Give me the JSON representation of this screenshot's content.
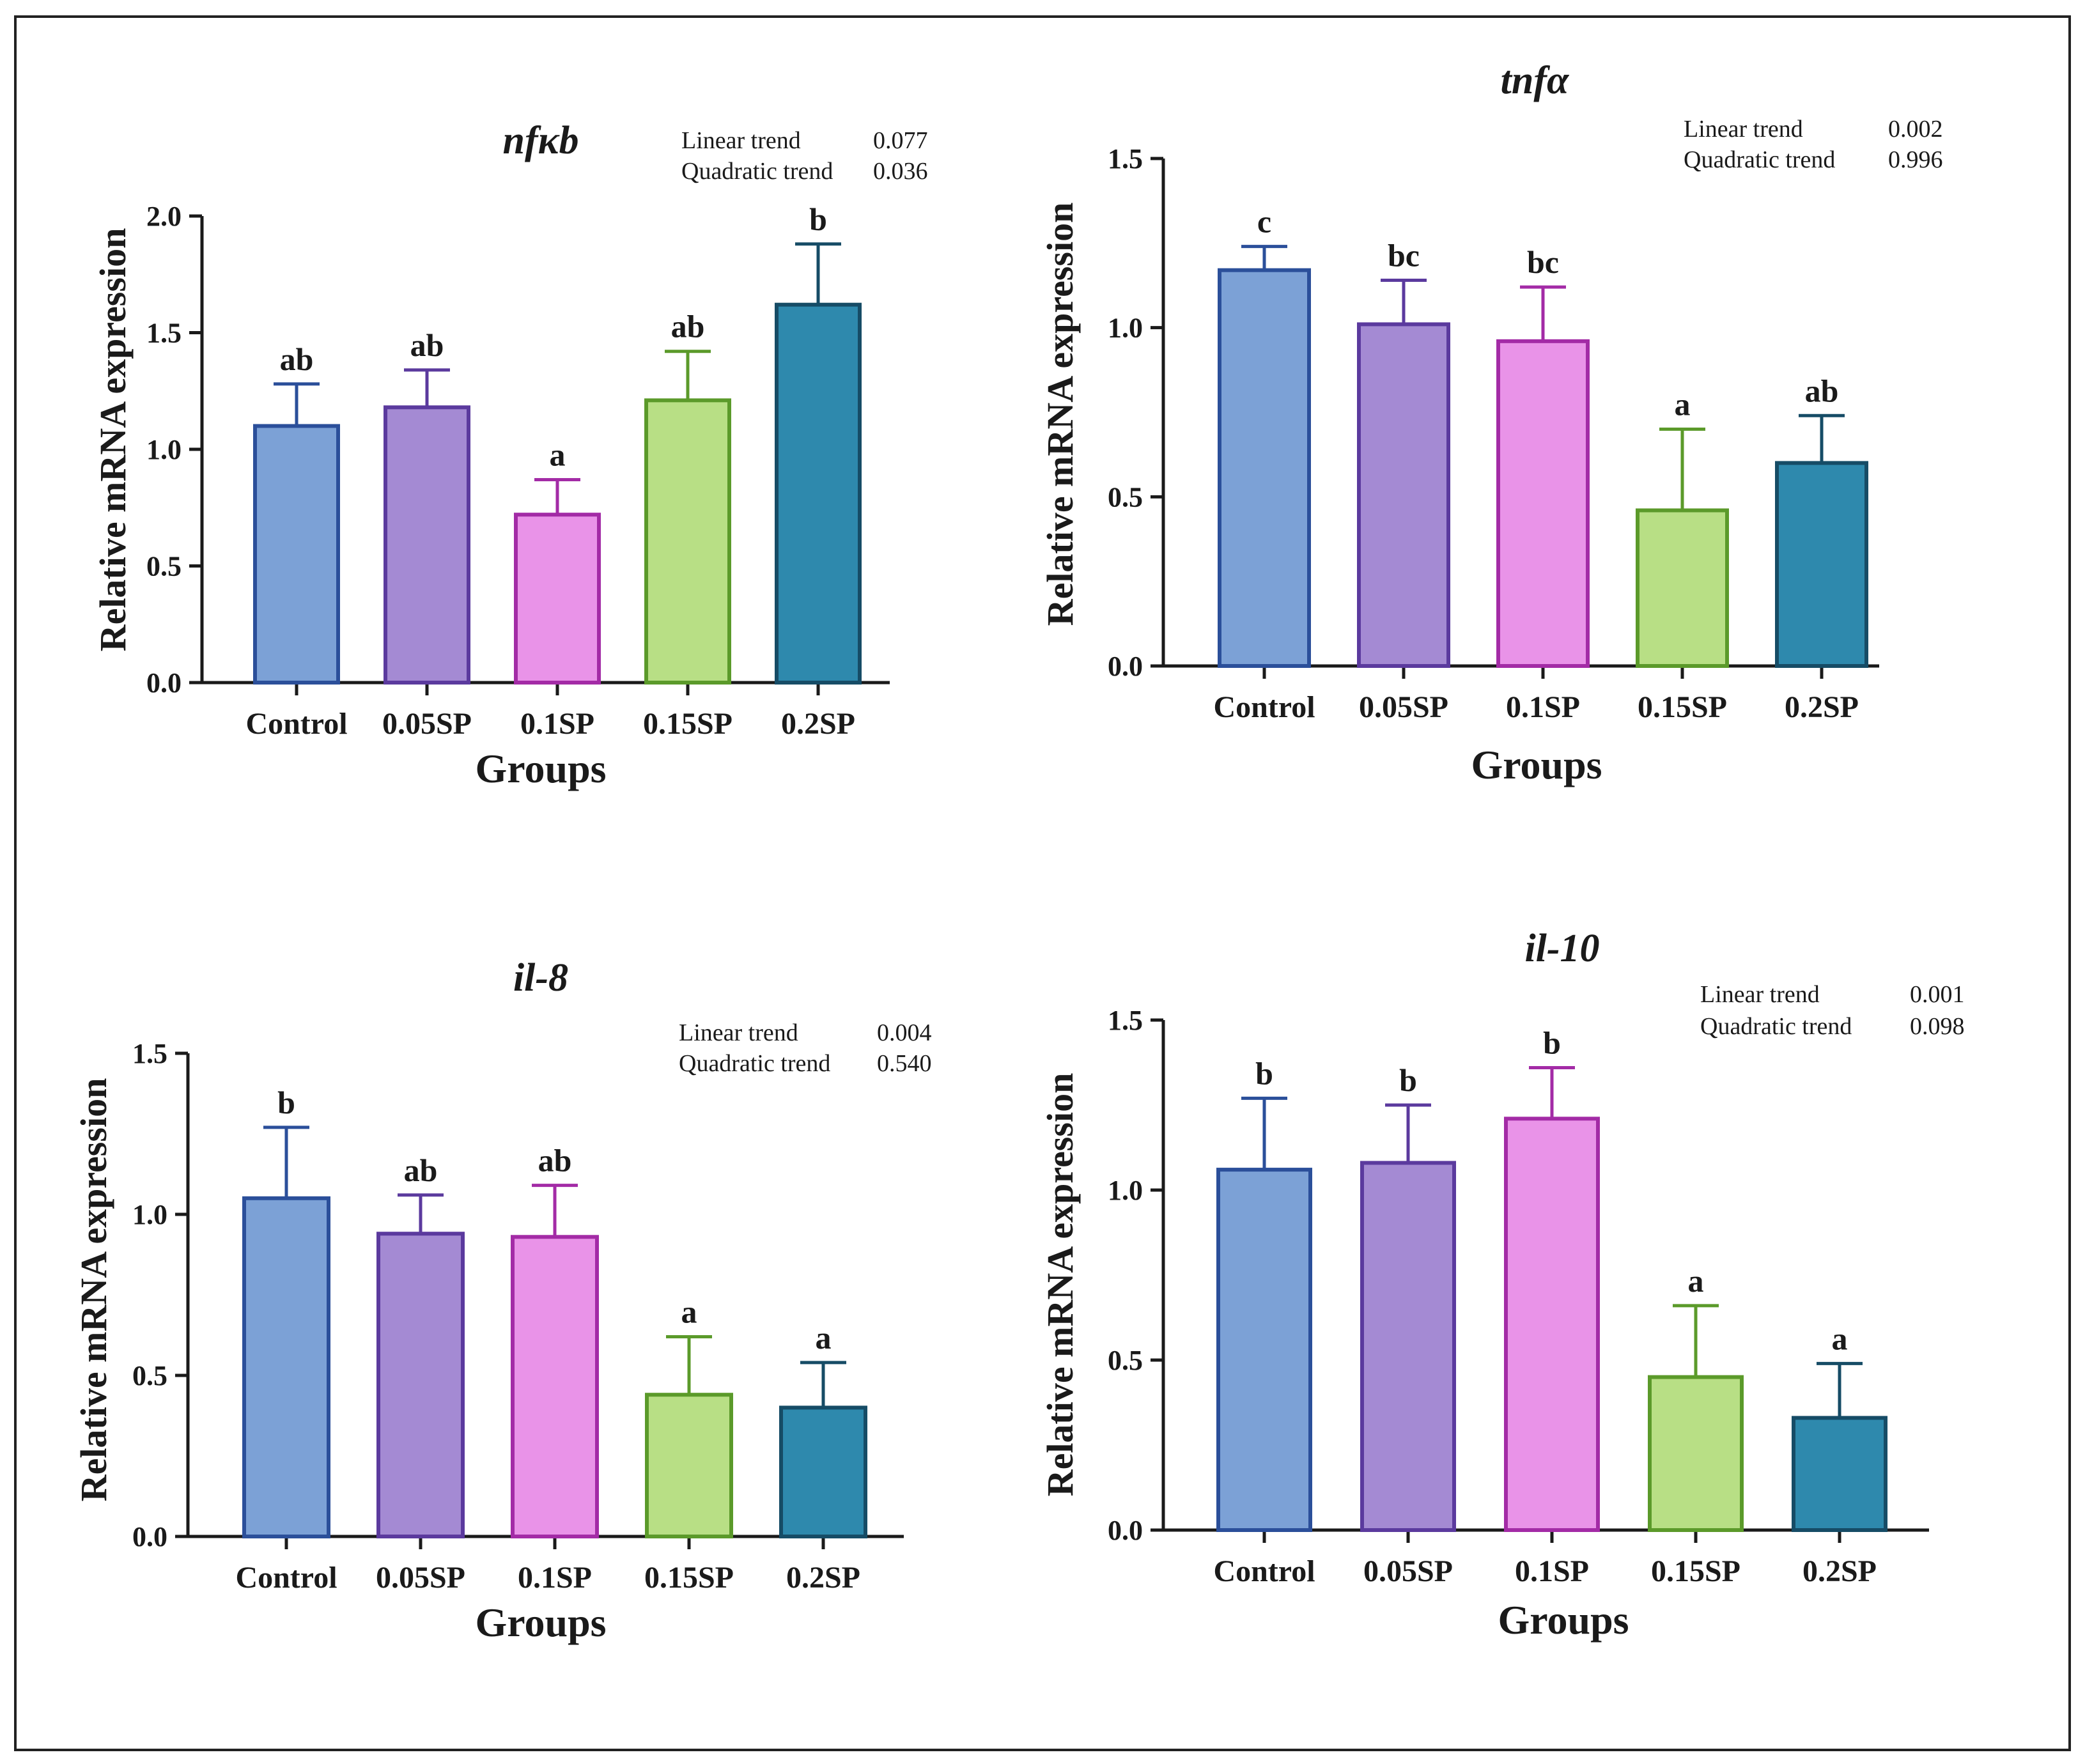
{
  "chart_data": [
    {
      "type": "bar",
      "title": "nfκb",
      "xlabel": "Groups",
      "ylabel": "Relative mRNA expression",
      "categories": [
        "Control",
        "0.05SP",
        "0.1SP",
        "0.15SP",
        "0.2SP"
      ],
      "values": [
        1.1,
        1.18,
        0.72,
        1.21,
        1.62
      ],
      "errors": [
        0.18,
        0.16,
        0.15,
        0.21,
        0.26
      ],
      "significance": [
        "ab",
        "ab",
        "a",
        "ab",
        "b"
      ],
      "ylim": [
        0,
        2.0
      ],
      "yticks": [
        "0.0",
        "0.5",
        "1.0",
        "1.5",
        "2.0"
      ],
      "ytick_values": [
        0,
        0.5,
        1.0,
        1.5,
        2.0
      ],
      "trend_labels": [
        "Linear trend",
        "Quadratic trend"
      ],
      "trend_values": [
        "0.077",
        "0.036"
      ]
    },
    {
      "type": "bar",
      "title": "tnfα",
      "xlabel": "Groups",
      "ylabel": "Relative mRNA expression",
      "categories": [
        "Control",
        "0.05SP",
        "0.1SP",
        "0.15SP",
        "0.2SP"
      ],
      "values": [
        1.17,
        1.01,
        0.96,
        0.46,
        0.6
      ],
      "errors": [
        0.07,
        0.13,
        0.16,
        0.24,
        0.14
      ],
      "significance": [
        "c",
        "bc",
        "bc",
        "a",
        "ab"
      ],
      "ylim": [
        0,
        1.5
      ],
      "yticks": [
        "0.0",
        "0.5",
        "1.0",
        "1.5"
      ],
      "ytick_values": [
        0,
        0.5,
        1.0,
        1.5
      ],
      "trend_labels": [
        "Linear trend",
        "Quadratic trend"
      ],
      "trend_values": [
        "0.002",
        "0.996"
      ]
    },
    {
      "type": "bar",
      "title": "il-8",
      "xlabel": "Groups",
      "ylabel": "Relative mRNA expression",
      "categories": [
        "Control",
        "0.05SP",
        "0.1SP",
        "0.15SP",
        "0.2SP"
      ],
      "values": [
        1.05,
        0.94,
        0.93,
        0.44,
        0.4
      ],
      "errors": [
        0.22,
        0.12,
        0.16,
        0.18,
        0.14
      ],
      "significance": [
        "b",
        "ab",
        "ab",
        "a",
        "a"
      ],
      "ylim": [
        0,
        1.5
      ],
      "yticks": [
        "0.0",
        "0.5",
        "1.0",
        "1.5"
      ],
      "ytick_values": [
        0,
        0.5,
        1.0,
        1.5
      ],
      "trend_labels": [
        "Linear trend",
        "Quadratic trend"
      ],
      "trend_values": [
        "0.004",
        "0.540"
      ]
    },
    {
      "type": "bar",
      "title": "il-10",
      "xlabel": "Groups",
      "ylabel": "Relative mRNA expression",
      "categories": [
        "Control",
        "0.05SP",
        "0.1SP",
        "0.15SP",
        "0.2SP"
      ],
      "values": [
        1.06,
        1.08,
        1.21,
        0.45,
        0.33
      ],
      "errors": [
        0.21,
        0.17,
        0.15,
        0.21,
        0.16
      ],
      "significance": [
        "b",
        "b",
        "b",
        "a",
        "a"
      ],
      "ylim": [
        0,
        1.5
      ],
      "yticks": [
        "0.0",
        "0.5",
        "1.0",
        "1.5"
      ],
      "ytick_values": [
        0,
        0.5,
        1.0,
        1.5
      ],
      "trend_labels": [
        "Linear trend",
        "Quadratic trend"
      ],
      "trend_values": [
        "0.001",
        "0.098"
      ]
    }
  ],
  "colors": {
    "fills": [
      "#7ca1d6",
      "#a48ad3",
      "#e993e8",
      "#b8df85",
      "#2e89ad"
    ],
    "strokes": [
      "#2b4f9a",
      "#5b3a9e",
      "#a32ba6",
      "#5b9a2a",
      "#164c66"
    ],
    "axis": "#1a1a1a"
  }
}
